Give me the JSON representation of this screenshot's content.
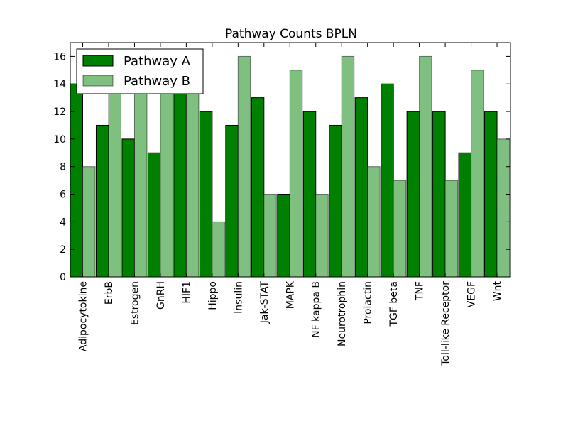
{
  "chart_data": {
    "type": "bar",
    "title": "Pathway Counts BPLN",
    "xlabel": "",
    "ylabel": "",
    "ylim": [
      0,
      17
    ],
    "yticks": [
      0,
      2,
      4,
      6,
      8,
      10,
      12,
      14,
      16
    ],
    "legend_position": "top-left",
    "categories": [
      "Adipocytokine",
      "ErbB",
      "Estrogen",
      "GnRH",
      "HIF1",
      "Hippo",
      "Insulin",
      "Jak-STAT",
      "MAPK",
      "NF kappa B",
      "Neurotrophin",
      "Prolactin",
      "TGF beta",
      "TNF",
      "Toll-like Receptor",
      "VEGF",
      "Wnt"
    ],
    "series": [
      {
        "name": "Pathway A",
        "color": "#008000",
        "values": [
          14,
          11,
          10,
          9,
          15,
          12,
          11,
          13,
          6,
          12,
          11,
          13,
          14,
          12,
          12,
          9,
          12
        ]
      },
      {
        "name": "Pathway B",
        "color": "#7fbf7f",
        "values": [
          8,
          14,
          14,
          14,
          14,
          4,
          16,
          6,
          15,
          6,
          16,
          8,
          7,
          16,
          7,
          15,
          10
        ]
      }
    ]
  }
}
